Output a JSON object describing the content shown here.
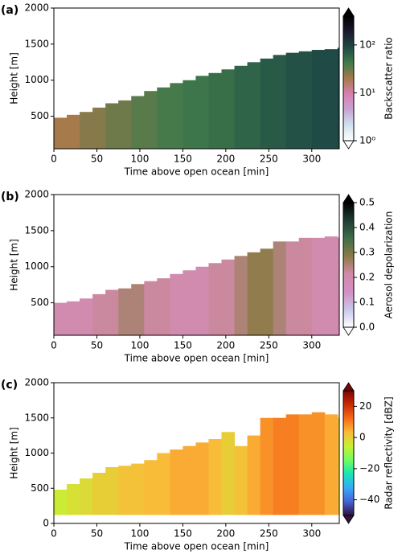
{
  "chart_data": [
    {
      "type": "heatmap",
      "panel": "(a)",
      "xlabel": "Time above open ocean [min]",
      "ylabel": "Height [m]",
      "colorbar_label": "Backscatter ratio",
      "log": true,
      "xlim": [
        0,
        332
      ],
      "xticks": [
        0,
        50,
        100,
        150,
        200,
        250,
        300
      ],
      "ylim": [
        50,
        2000
      ],
      "yticks": [
        500,
        1000,
        1500,
        2000
      ],
      "clim": [
        1,
        400
      ],
      "cticks": [
        {
          "value": 1,
          "label": "10⁰"
        },
        {
          "value": 10,
          "label": "10¹"
        },
        {
          "value": 100,
          "label": "10²"
        }
      ],
      "colors": [
        "#ffffff",
        "#cfe2ef",
        "#c9a3d4",
        "#d77fb0",
        "#a67a4a",
        "#3f7a4a",
        "#1f4a45",
        "#1a1a2e",
        "#000000"
      ],
      "x": [
        0,
        15,
        30,
        45,
        60,
        75,
        90,
        105,
        120,
        135,
        150,
        165,
        180,
        195,
        210,
        225,
        240,
        255,
        270,
        285,
        300,
        315,
        330
      ],
      "top": [
        480,
        520,
        560,
        620,
        680,
        720,
        780,
        850,
        900,
        960,
        1000,
        1060,
        1100,
        1150,
        1200,
        1250,
        1300,
        1350,
        1380,
        1400,
        1420,
        1430,
        1450
      ],
      "base": [
        50,
        50,
        50,
        50,
        50,
        50,
        50,
        50,
        50,
        50,
        50,
        50,
        50,
        50,
        50,
        50,
        50,
        50,
        50,
        50,
        50,
        50,
        50
      ],
      "values": [
        20,
        20,
        25,
        25,
        30,
        30,
        35,
        35,
        40,
        40,
        45,
        45,
        50,
        50,
        60,
        60,
        70,
        70,
        80,
        80,
        90,
        90,
        100
      ]
    },
    {
      "type": "heatmap",
      "panel": "(b)",
      "xlabel": "Time above open ocean [min]",
      "ylabel": "Height [m]",
      "colorbar_label": "Aerosol depolarization",
      "log": false,
      "xlim": [
        0,
        332
      ],
      "xticks": [
        0,
        50,
        100,
        150,
        200,
        250,
        300
      ],
      "ylim": [
        50,
        2000
      ],
      "yticks": [
        500,
        1000,
        1500,
        2000
      ],
      "clim": [
        0,
        0.5
      ],
      "cticks": [
        {
          "value": 0,
          "label": "0.0"
        },
        0.1,
        0.2,
        0.3,
        0.4,
        0.5
      ],
      "colors": [
        "#ffffff",
        "#c9c6ea",
        "#d58ec4",
        "#d08aa8",
        "#8c7b45",
        "#3d6e48",
        "#1f3d35",
        "#000000"
      ],
      "x": [
        0,
        15,
        30,
        45,
        60,
        75,
        90,
        105,
        120,
        135,
        150,
        165,
        180,
        195,
        210,
        225,
        240,
        255,
        270,
        285,
        300,
        315,
        330
      ],
      "top": [
        500,
        520,
        560,
        620,
        680,
        700,
        760,
        800,
        840,
        900,
        950,
        1000,
        1050,
        1100,
        1150,
        1200,
        1250,
        1350,
        1350,
        1400,
        1400,
        1420,
        1400
      ],
      "base": [
        50,
        50,
        50,
        50,
        50,
        50,
        50,
        50,
        50,
        50,
        50,
        50,
        50,
        50,
        50,
        50,
        50,
        50,
        50,
        50,
        50,
        50,
        50
      ],
      "values": [
        0.2,
        0.2,
        0.2,
        0.22,
        0.22,
        0.25,
        0.25,
        0.22,
        0.22,
        0.2,
        0.2,
        0.2,
        0.22,
        0.22,
        0.25,
        0.28,
        0.28,
        0.25,
        0.22,
        0.22,
        0.2,
        0.2,
        0.2
      ]
    },
    {
      "type": "heatmap",
      "panel": "(c)",
      "xlabel": "Time above open ocean [min]",
      "ylabel": "Height [m]",
      "colorbar_label": "Radar reflectivity [dBZ]",
      "log": false,
      "xlim": [
        0,
        332
      ],
      "xticks": [
        0,
        50,
        100,
        150,
        200,
        250,
        300
      ],
      "ylim": [
        0,
        2000
      ],
      "yticks": [
        0,
        500,
        1000,
        1500,
        2000
      ],
      "clim": [
        -50,
        30
      ],
      "cticks": [
        {
          "value": -40,
          "label": "−40"
        },
        {
          "value": -20,
          "label": "−20"
        },
        0,
        20
      ],
      "colors": [
        "#30123b",
        "#4662d7",
        "#36aaf9",
        "#1ae4b6",
        "#72fe5e",
        "#c8ef34",
        "#faba39",
        "#f66b19",
        "#ca2a04",
        "#7a0403"
      ],
      "x": [
        0,
        15,
        30,
        45,
        60,
        75,
        90,
        105,
        120,
        135,
        150,
        165,
        180,
        195,
        210,
        225,
        240,
        255,
        270,
        285,
        300,
        315,
        330
      ],
      "top": [
        480,
        560,
        640,
        720,
        800,
        820,
        850,
        900,
        1000,
        1050,
        1100,
        1150,
        1200,
        1300,
        1100,
        1250,
        1500,
        1500,
        1550,
        1550,
        1580,
        1550,
        1500
      ],
      "base": [
        120,
        120,
        120,
        120,
        120,
        120,
        120,
        120,
        120,
        120,
        120,
        120,
        120,
        120,
        120,
        120,
        120,
        120,
        120,
        120,
        120,
        120,
        120
      ],
      "values": [
        -5,
        -3,
        -2,
        0,
        0,
        2,
        2,
        3,
        3,
        5,
        5,
        5,
        3,
        0,
        2,
        5,
        8,
        10,
        10,
        8,
        8,
        5,
        2
      ]
    }
  ]
}
